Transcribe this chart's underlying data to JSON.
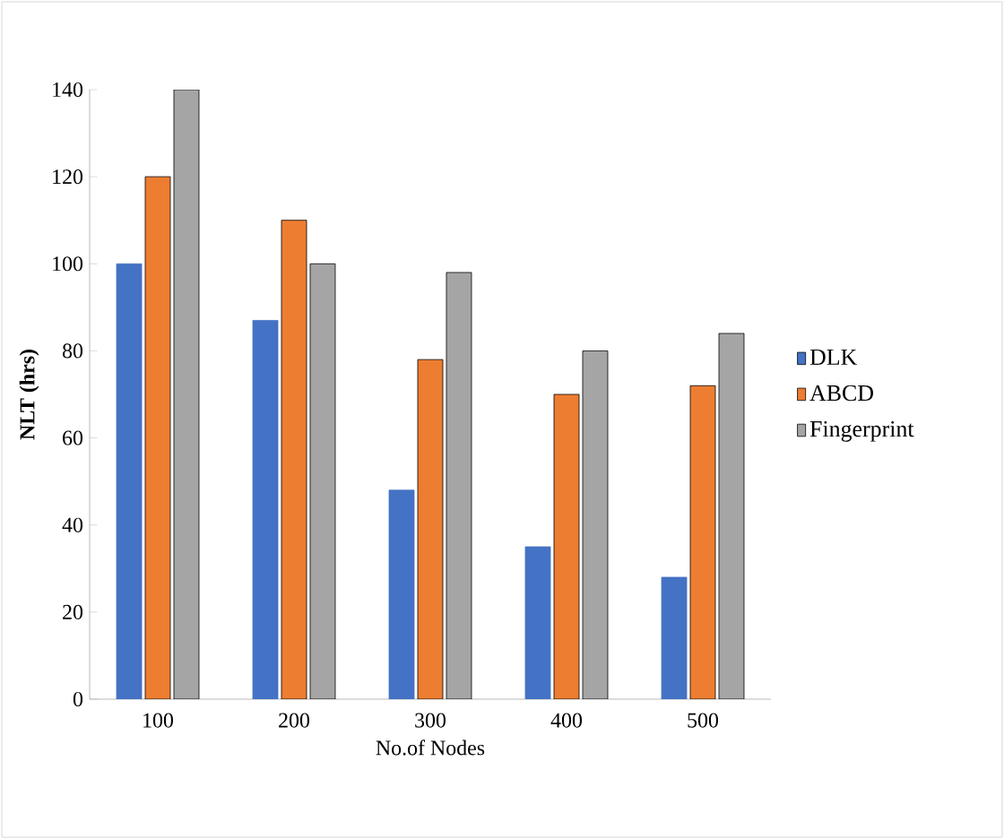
{
  "chart_data": {
    "type": "bar",
    "xlabel": "No.of Nodes",
    "ylabel": "NLT (hrs)",
    "categories": [
      "100",
      "200",
      "300",
      "400",
      "500"
    ],
    "series": [
      {
        "name": "DLK",
        "color": "#4472c4",
        "values": [
          100,
          87,
          48,
          35,
          28
        ]
      },
      {
        "name": "ABCD",
        "color": "#ed7d31",
        "values": [
          120,
          110,
          78,
          70,
          72
        ]
      },
      {
        "name": "Fingerprint",
        "color": "#a5a5a5",
        "values": [
          140,
          100,
          98,
          80,
          84
        ]
      }
    ],
    "ylim": [
      0,
      140
    ],
    "yticks": [
      0,
      20,
      40,
      60,
      80,
      100,
      120,
      140
    ],
    "grid": false,
    "legend": "right"
  }
}
